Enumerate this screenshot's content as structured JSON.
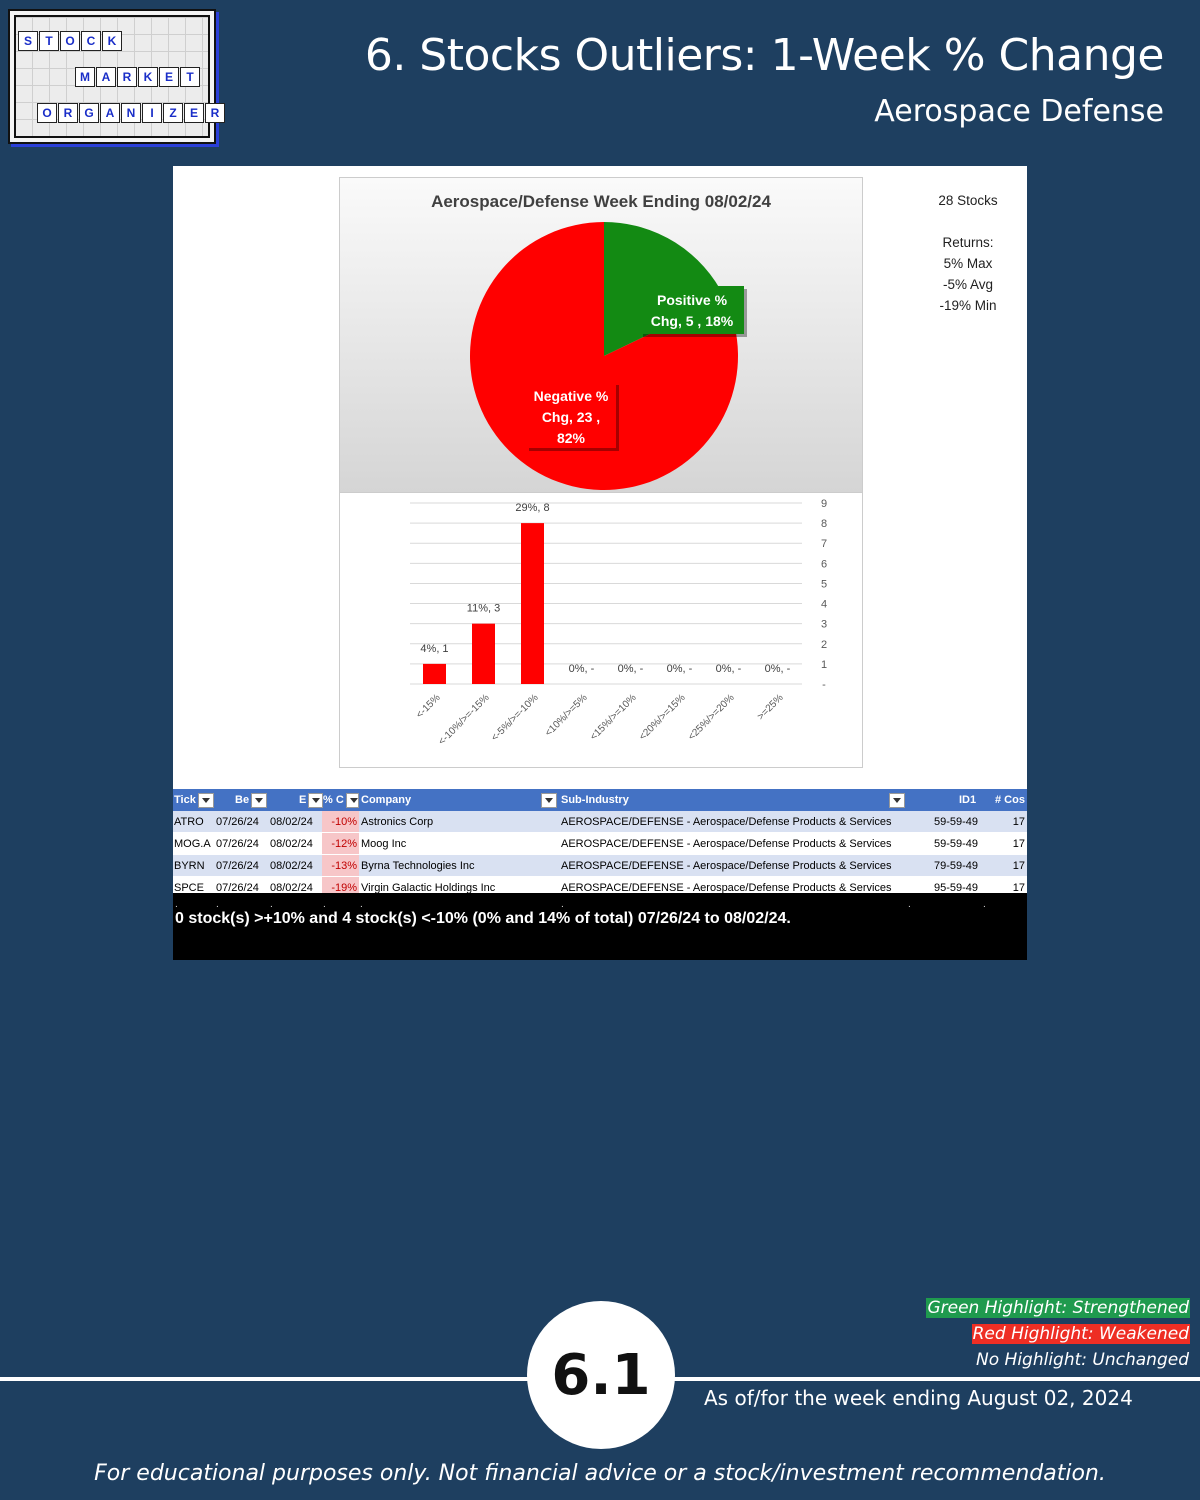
{
  "logo": {
    "row1": [
      "S",
      "T",
      "O",
      "C",
      "K"
    ],
    "row2": [
      "M",
      "A",
      "R",
      "K",
      "E",
      "T"
    ],
    "row3": [
      "O",
      "R",
      "G",
      "A",
      "N",
      "I",
      "Z",
      "E",
      "R"
    ]
  },
  "header": {
    "title": "6. Stocks Outliers: 1-Week % Change",
    "subtitle": "Aerospace Defense"
  },
  "stats": {
    "count": "28 Stocks",
    "returns_label": "Returns:",
    "max": "5% Max",
    "avg": "-5% Avg",
    "min": "-19% Min"
  },
  "chart_data": [
    {
      "type": "pie",
      "title": "Aerospace/Defense Week Ending 08/02/24",
      "slices": [
        {
          "name": "Positive % Chg",
          "value": 5,
          "percent": 18,
          "color": "#138a13",
          "label_lines": [
            "Positive %",
            "Chg,  5 , 18%"
          ]
        },
        {
          "name": "Negative % Chg",
          "value": 23,
          "percent": 82,
          "color": "#ff0000",
          "label_lines": [
            "Negative %",
            "Chg,  23 ,",
            "82%"
          ]
        }
      ]
    },
    {
      "type": "bar",
      "categories": [
        "<-15%",
        "<-10%/>=-15%",
        "<-5%/>=-10%",
        "<10%/>=5%",
        "<15%/>=10%",
        "<20%/>=15%",
        "<25%/>=20%",
        ">=25%"
      ],
      "values": [
        1,
        3,
        8,
        0,
        0,
        0,
        0,
        0
      ],
      "data_labels": [
        "4%,  1",
        "11%,  3",
        "29%,  8",
        "0%,  -",
        "0%,  -",
        "0%,  -",
        "0%,  -",
        "0%,  -"
      ],
      "yticks": [
        "-",
        "1",
        "2",
        "3",
        "4",
        "5",
        "6",
        "7",
        "8",
        "9"
      ],
      "ylim": [
        0,
        9
      ],
      "bar_color": "#ff0000",
      "grid": true
    }
  ],
  "table": {
    "headers": {
      "ticker": "Tick",
      "begin": "Be",
      "end": "E",
      "pct": "% C",
      "company": "Company",
      "subindustry": "Sub-Industry",
      "id1": "ID1",
      "cos": "# Cos"
    },
    "rows": [
      {
        "ticker": "ATRO",
        "begin": "07/26/24",
        "end": "08/02/24",
        "pct": "-10%",
        "company": "Astronics Corp",
        "subindustry": "AEROSPACE/DEFENSE - Aerospace/Defense Products & Services",
        "id1": "59-59-49",
        "cos": "17"
      },
      {
        "ticker": "MOG.A",
        "begin": "07/26/24",
        "end": "08/02/24",
        "pct": "-12%",
        "company": "Moog Inc",
        "subindustry": "AEROSPACE/DEFENSE - Aerospace/Defense Products & Services",
        "id1": "59-59-49",
        "cos": "17"
      },
      {
        "ticker": "BYRN",
        "begin": "07/26/24",
        "end": "08/02/24",
        "pct": "-13%",
        "company": "Byrna Technologies Inc",
        "subindustry": "AEROSPACE/DEFENSE - Aerospace/Defense Products & Services",
        "id1": "79-59-49",
        "cos": "17"
      },
      {
        "ticker": "SPCE",
        "begin": "07/26/24",
        "end": "08/02/24",
        "pct": "-19%",
        "company": "Virgin Galactic Holdings Inc",
        "subindustry": "AEROSPACE/DEFENSE - Aerospace/Defense Products & Services",
        "id1": "95-59-49",
        "cos": "17"
      }
    ],
    "summary": "0 stock(s) >+10% and 4 stock(s) <-10% (0% and 14% of total) 07/26/24 to 08/02/24."
  },
  "legend": {
    "green": "Green Highlight: Strengthened",
    "red": "Red Highlight: Weakened",
    "none": "No Highlight: Unchanged"
  },
  "footer": {
    "page_number": "6.1",
    "as_of": "As of/for the week ending August 02, 2024",
    "disclaimer": "For educational purposes only. Not financial advice or a stock/investment recommendation."
  }
}
